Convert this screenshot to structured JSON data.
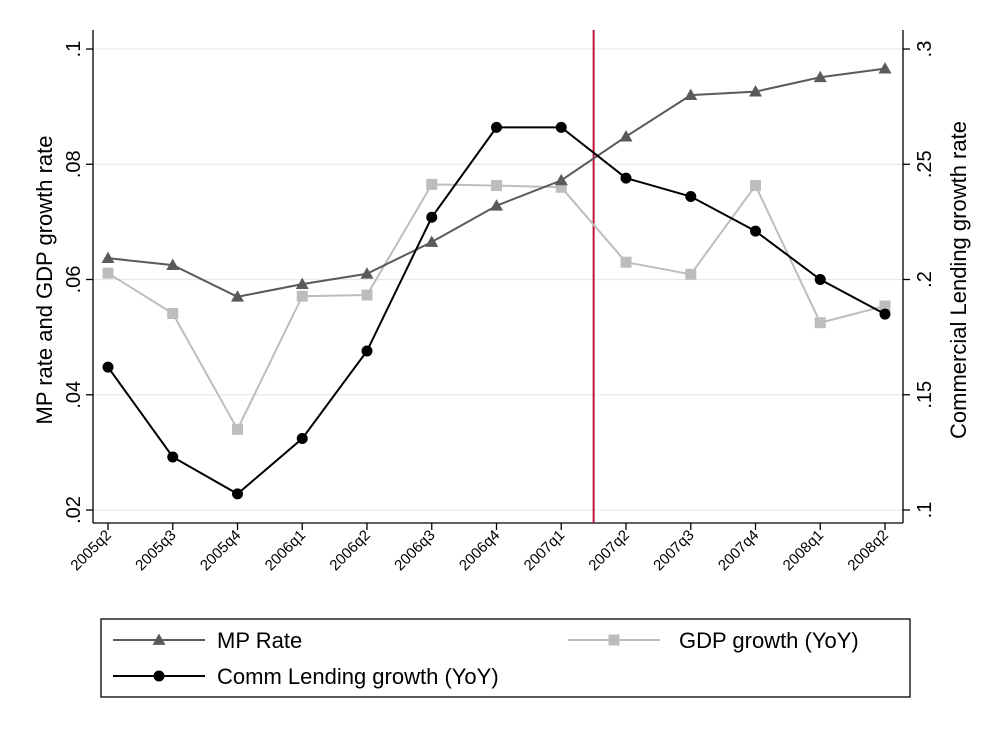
{
  "chart_data": {
    "type": "line",
    "categories": [
      "2005q2",
      "2005q3",
      "2005q4",
      "2006q1",
      "2006q2",
      "2006q3",
      "2006q4",
      "2007q1",
      "2007q2",
      "2007q3",
      "2007q4",
      "2008q1",
      "2008q2"
    ],
    "left_axis": {
      "label": "MP rate and GDP growth rate",
      "range": [
        0.02,
        0.1
      ],
      "ticks": [
        0.02,
        0.04,
        0.06,
        0.08,
        0.1
      ],
      "tick_labels": [
        ".02",
        ".04",
        ".06",
        ".08",
        ".1"
      ]
    },
    "right_axis": {
      "label": "Commercial Lending growth rate",
      "range": [
        0.1,
        0.3
      ],
      "ticks": [
        0.1,
        0.15,
        0.2,
        0.25,
        0.3
      ],
      "tick_labels": [
        ".1",
        ".15",
        ".2",
        ".25",
        ".3"
      ]
    },
    "series": [
      {
        "name": "MP Rate",
        "axis": "left",
        "marker": "triangle",
        "color": "#5a5a5a",
        "values": [
          0.0637,
          0.0625,
          0.057,
          0.0592,
          0.061,
          0.0665,
          0.0728,
          0.0772,
          0.0848,
          0.092,
          0.0926,
          0.0951,
          0.0966
        ]
      },
      {
        "name": "GDP growth (YoY)",
        "axis": "left",
        "marker": "square",
        "color": "#bdbdbd",
        "values": [
          0.0611,
          0.0541,
          0.034,
          0.0571,
          0.0573,
          0.0765,
          0.0763,
          0.076,
          0.063,
          0.0609,
          0.0763,
          0.0525,
          0.0554
        ]
      },
      {
        "name": "Comm Lending growth (YoY)",
        "axis": "right",
        "marker": "circle",
        "color": "#000000",
        "values": [
          0.162,
          0.123,
          0.107,
          0.131,
          0.169,
          0.227,
          0.266,
          0.266,
          0.244,
          0.236,
          0.221,
          0.2,
          0.185
        ]
      }
    ],
    "vertical_line": {
      "between": [
        "2007q1",
        "2007q2"
      ],
      "color": "#c0143c"
    },
    "grid": true,
    "legend_position": "bottom"
  }
}
